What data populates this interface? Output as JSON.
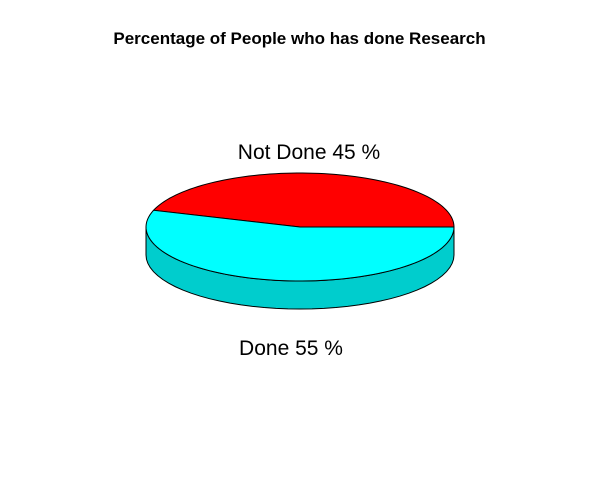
{
  "chart_data": {
    "type": "pie",
    "style": "3d",
    "title": "Percentage of People who has done Research",
    "slices": [
      {
        "label": "Not Done   45 %",
        "category": "Not Done",
        "value": 45,
        "color": "#FF0000",
        "side_color": "#CC0000"
      },
      {
        "label": "Done   55 %",
        "category": "Done",
        "value": 55,
        "color": "#00FFFF",
        "side_color": "#00CDCD"
      }
    ]
  }
}
